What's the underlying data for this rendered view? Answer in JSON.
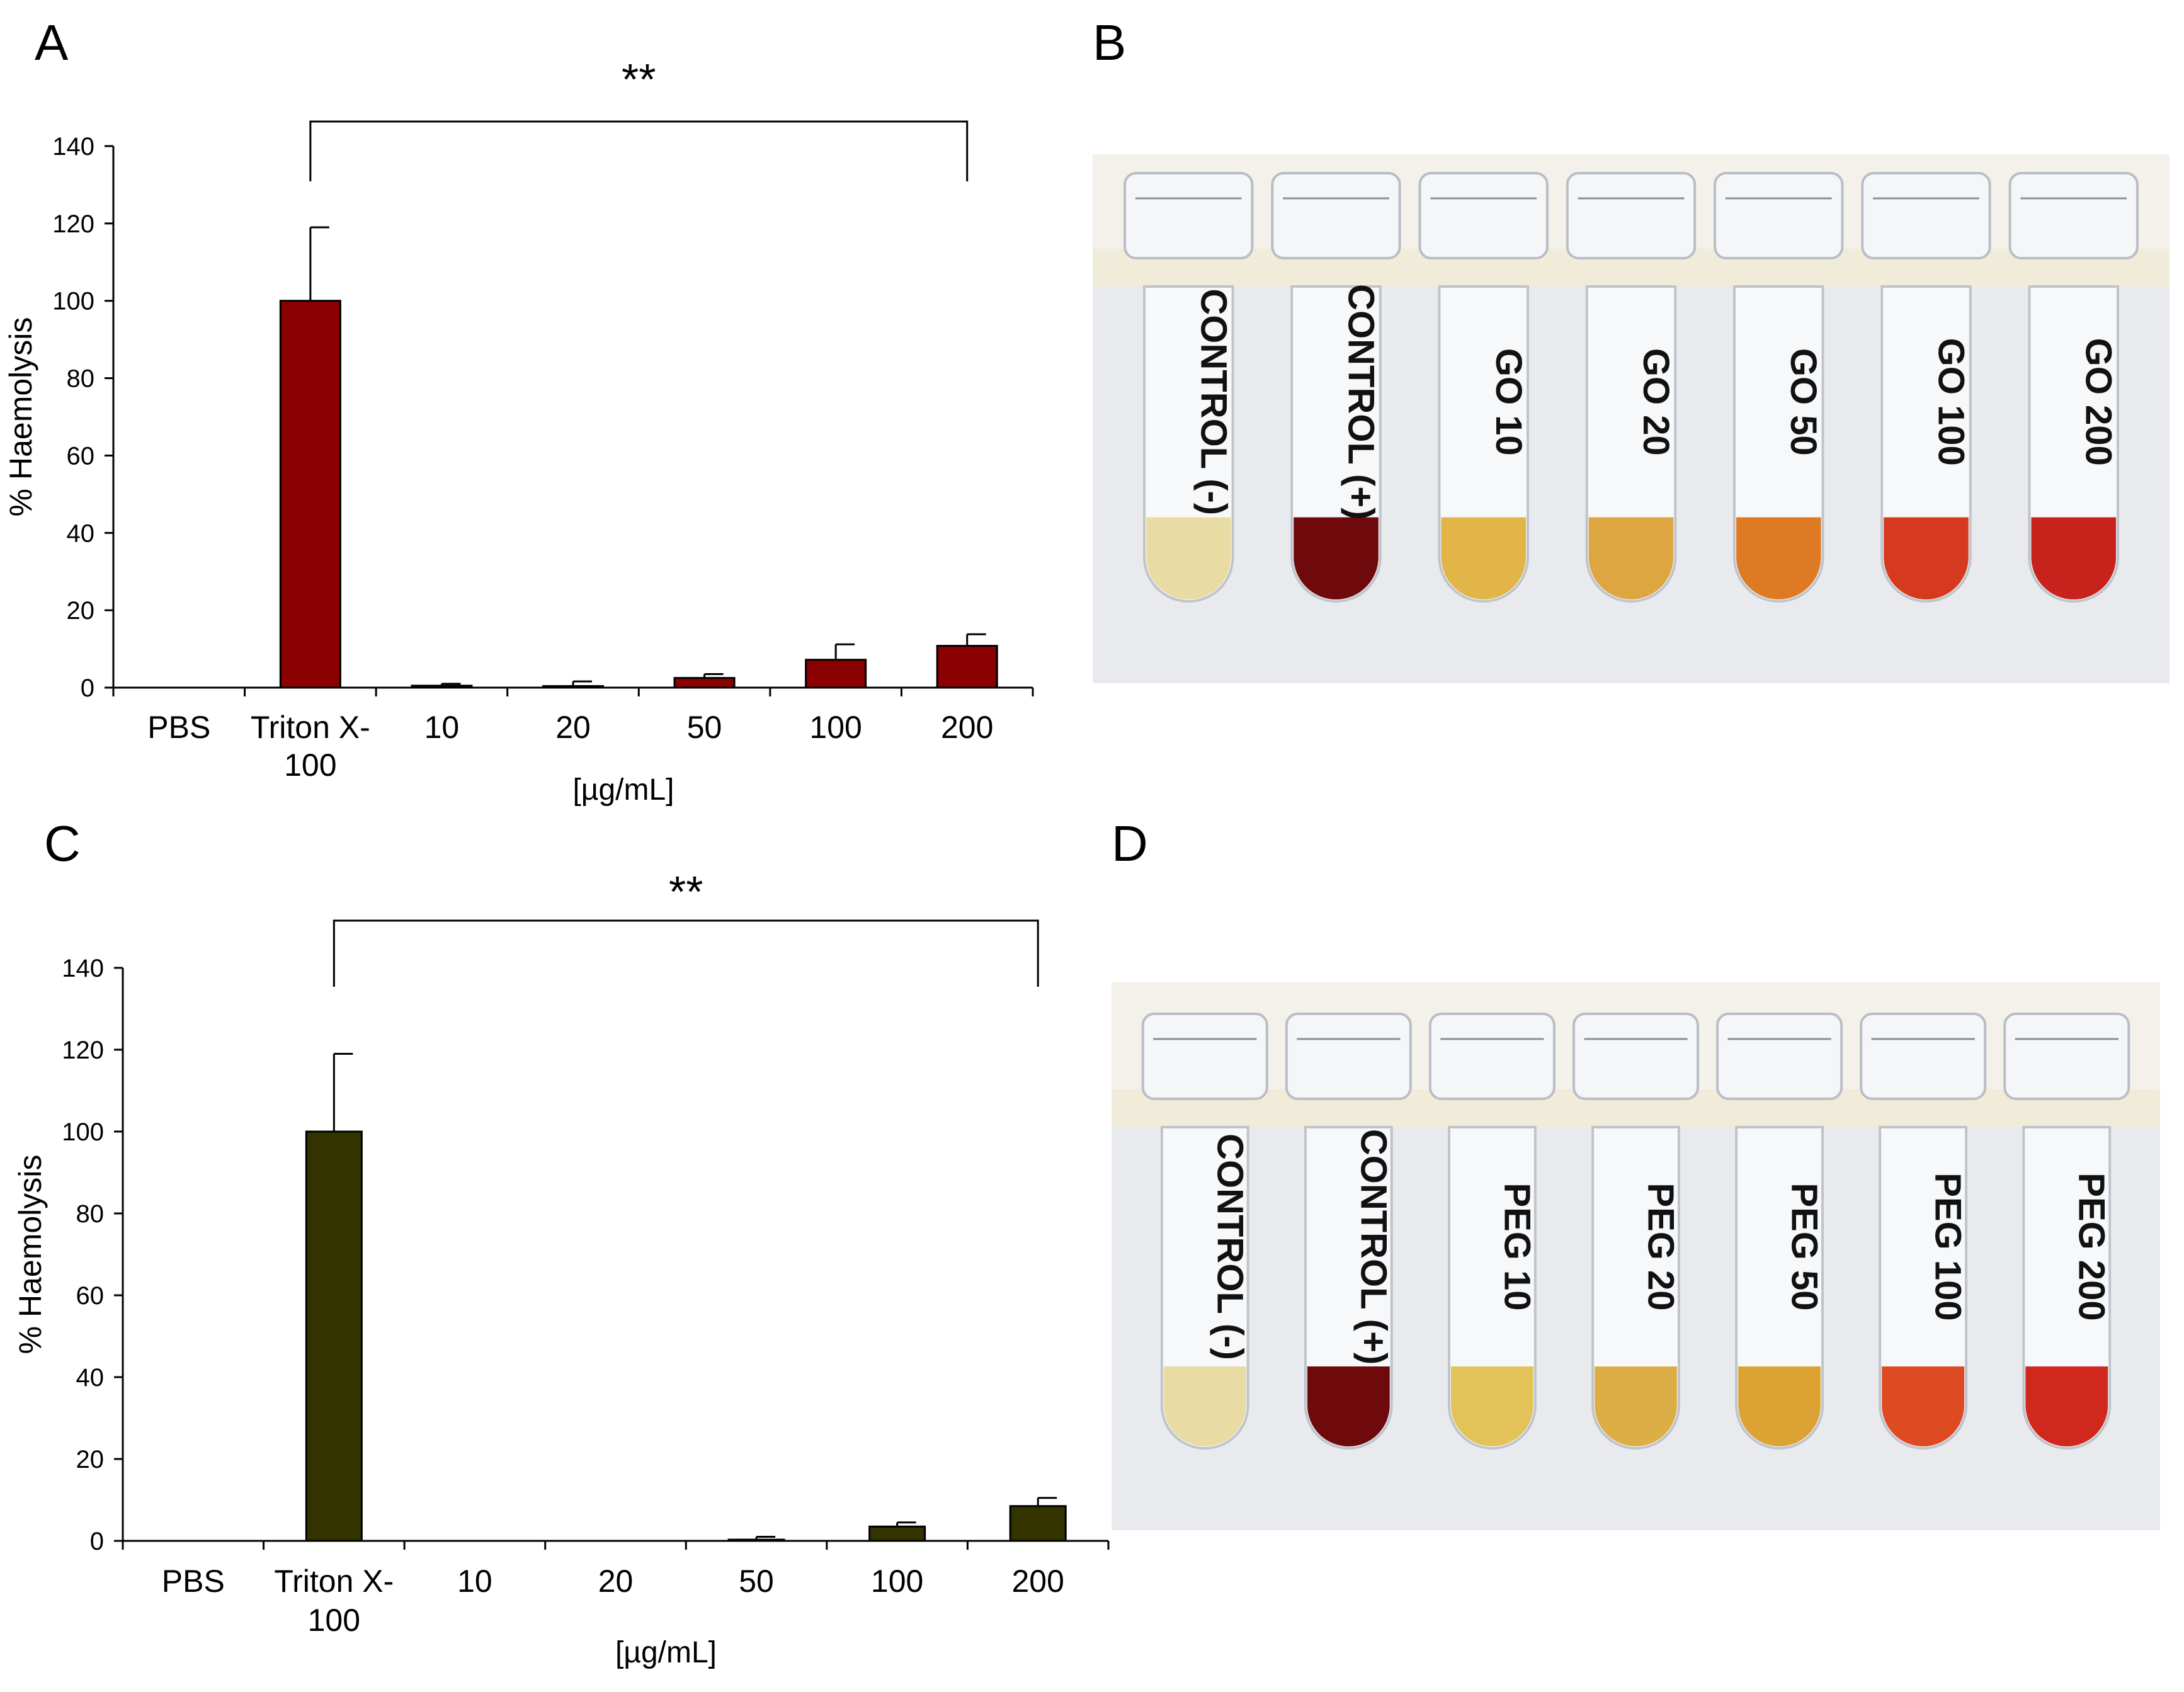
{
  "panels": {
    "a": "A",
    "b": "B",
    "c": "C",
    "d": "D"
  },
  "colors": {
    "chart_a_bar": "#8b0000",
    "chart_c_bar": "#333300",
    "backdrop": "#e9eaee",
    "rail": "#f1ecd9"
  },
  "chart_data": [
    {
      "type": "bar",
      "panel": "A",
      "categories": [
        "PBS",
        "Triton X-\n100",
        "10",
        "20",
        "50",
        "100",
        "200"
      ],
      "values": [
        0,
        100,
        0.5,
        0.4,
        2.5,
        7.2,
        10.8
      ],
      "errors": [
        0,
        19,
        0.5,
        1.2,
        1.0,
        4.0,
        3.0
      ],
      "xlabel": "[µg/mL]",
      "ylabel": "% Haemolysis",
      "ylim": [
        0,
        140
      ],
      "yticks": [
        0,
        20,
        40,
        60,
        80,
        100,
        120,
        140
      ],
      "significance": {
        "from": 1,
        "to": 6,
        "label": "**"
      },
      "grid": false,
      "color": "#8b0000"
    },
    {
      "type": "bar",
      "panel": "C",
      "categories": [
        "PBS",
        "Triton X-\n100",
        "10",
        "20",
        "50",
        "100",
        "200"
      ],
      "values": [
        0,
        100,
        0,
        0,
        0.3,
        3.5,
        8.5
      ],
      "errors": [
        0,
        19,
        0,
        0,
        0.7,
        1.0,
        2.0
      ],
      "xlabel": "[µg/mL]",
      "ylabel": "% Haemolysis",
      "ylim": [
        0,
        140
      ],
      "yticks": [
        0,
        20,
        40,
        60,
        80,
        100,
        120,
        140
      ],
      "significance": {
        "from": 1,
        "to": 6,
        "label": "**"
      },
      "grid": false,
      "color": "#333300"
    }
  ],
  "photo_b": {
    "tubes": [
      {
        "label": "CONTROL (-)",
        "liquid": "#e8dca4"
      },
      {
        "label": "CONTROL (+)",
        "liquid": "#6e0a0c"
      },
      {
        "label": "GO 10",
        "liquid": "#e2b548"
      },
      {
        "label": "GO 20",
        "liquid": "#dda640"
      },
      {
        "label": "GO 50",
        "liquid": "#de7a24"
      },
      {
        "label": "GO 100",
        "liquid": "#d63a1e"
      },
      {
        "label": "GO 200",
        "liquid": "#c8221c"
      }
    ]
  },
  "photo_d": {
    "tubes": [
      {
        "label": "CONTROL (-)",
        "liquid": "#e8dca4"
      },
      {
        "label": "CONTROL (+)",
        "liquid": "#6e0a0c"
      },
      {
        "label": "PEG 10",
        "liquid": "#e3c25a"
      },
      {
        "label": "PEG 20",
        "liquid": "#deae46"
      },
      {
        "label": "PEG 50",
        "liquid": "#dca233"
      },
      {
        "label": "PEG 100",
        "liquid": "#de4a22"
      },
      {
        "label": "PEG 200",
        "liquid": "#d0281c"
      }
    ]
  }
}
